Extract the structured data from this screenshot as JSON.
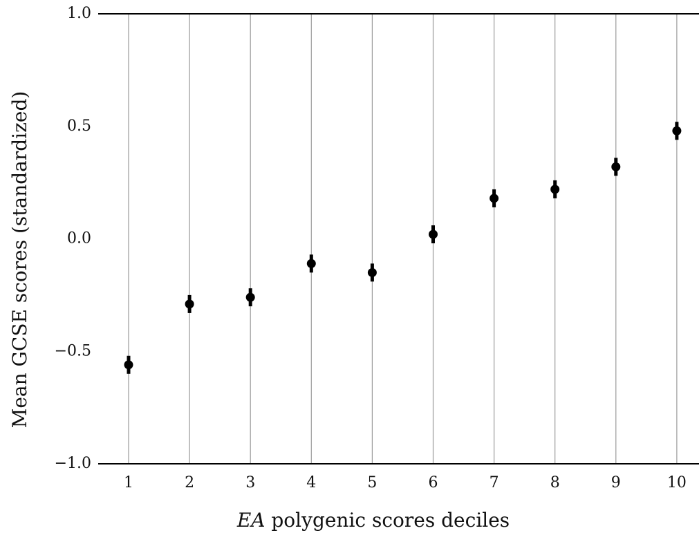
{
  "chart_data": {
    "type": "scatter",
    "title": "",
    "xlabel_italic": "EA",
    "xlabel_rest": " polygenic scores deciles",
    "ylabel": "Mean GCSE scores (standardized)",
    "x": [
      1,
      2,
      3,
      4,
      5,
      6,
      7,
      8,
      9,
      10
    ],
    "x_tick_labels": [
      "1",
      "2",
      "3",
      "4",
      "5",
      "6",
      "7",
      "8",
      "9",
      "10"
    ],
    "series": [
      {
        "values": [
          -0.56,
          -0.29,
          -0.26,
          -0.11,
          -0.15,
          0.02,
          0.18,
          0.22,
          0.32,
          0.48
        ],
        "error_low": [
          -0.6,
          -0.33,
          -0.3,
          -0.15,
          -0.19,
          -0.02,
          0.14,
          0.18,
          0.28,
          0.44
        ],
        "error_high": [
          -0.52,
          -0.25,
          -0.22,
          -0.07,
          -0.11,
          0.06,
          0.22,
          0.26,
          0.36,
          0.52
        ]
      }
    ],
    "ylim": [
      -1.0,
      1.0
    ],
    "y_ticks": [
      -1.0,
      -0.5,
      0.0,
      0.5,
      1.0
    ],
    "y_tick_labels": [
      "−1.0",
      "−0.5",
      "0.0",
      "0.5",
      "1.0"
    ],
    "grid": "vertical lines at each decile",
    "legend": "none",
    "colors": {
      "points": "#000000",
      "grid": "#9a9a9a",
      "axis": "#000000"
    }
  }
}
